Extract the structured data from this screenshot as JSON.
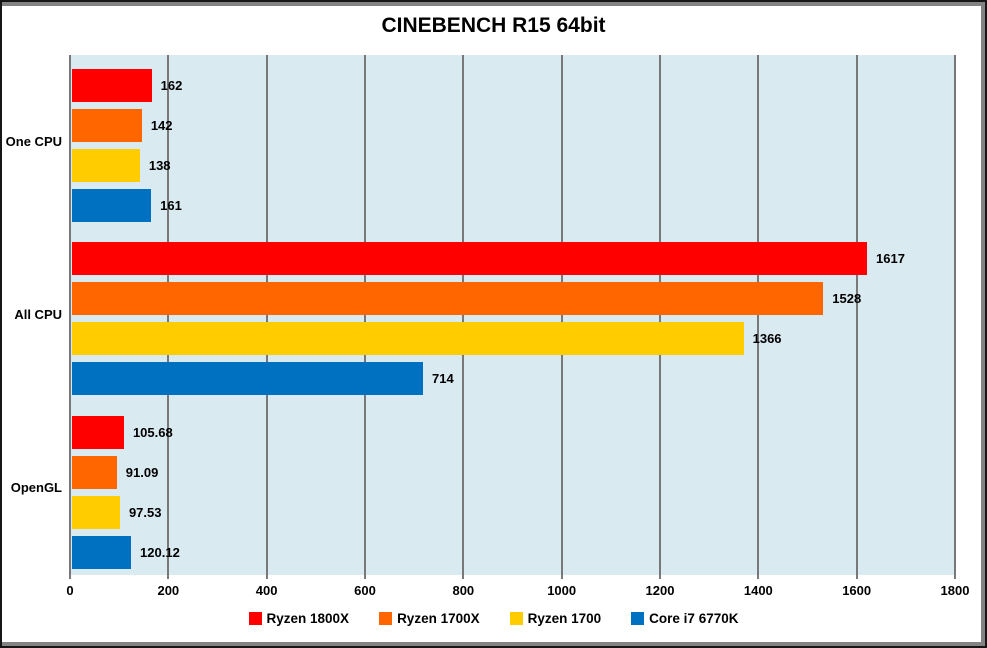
{
  "chart_data": {
    "type": "bar",
    "orientation": "horizontal",
    "title": "CINEBENCH R15 64bit",
    "categories": [
      "One CPU",
      "All CPU",
      "OpenGL"
    ],
    "series": [
      {
        "name": "Ryzen 1800X",
        "color": "#ff0000",
        "values": [
          162,
          1617,
          105.68
        ]
      },
      {
        "name": "Ryzen 1700X",
        "color": "#ff6600",
        "values": [
          142,
          1528,
          91.09
        ]
      },
      {
        "name": "Ryzen 1700",
        "color": "#ffcc00",
        "values": [
          138,
          1366,
          97.53
        ]
      },
      {
        "name": "Core i7 6770K",
        "color": "#0070c0",
        "values": [
          161,
          714,
          120.12
        ]
      }
    ],
    "xlim": [
      0,
      1800
    ],
    "x_ticks": [
      0,
      200,
      400,
      600,
      800,
      1000,
      1200,
      1400,
      1600,
      1800
    ],
    "grid": true,
    "legend_position": "bottom",
    "plot_bg_color": "#daeaf1",
    "gridline_color": "#787878",
    "text_color": "#000000"
  }
}
